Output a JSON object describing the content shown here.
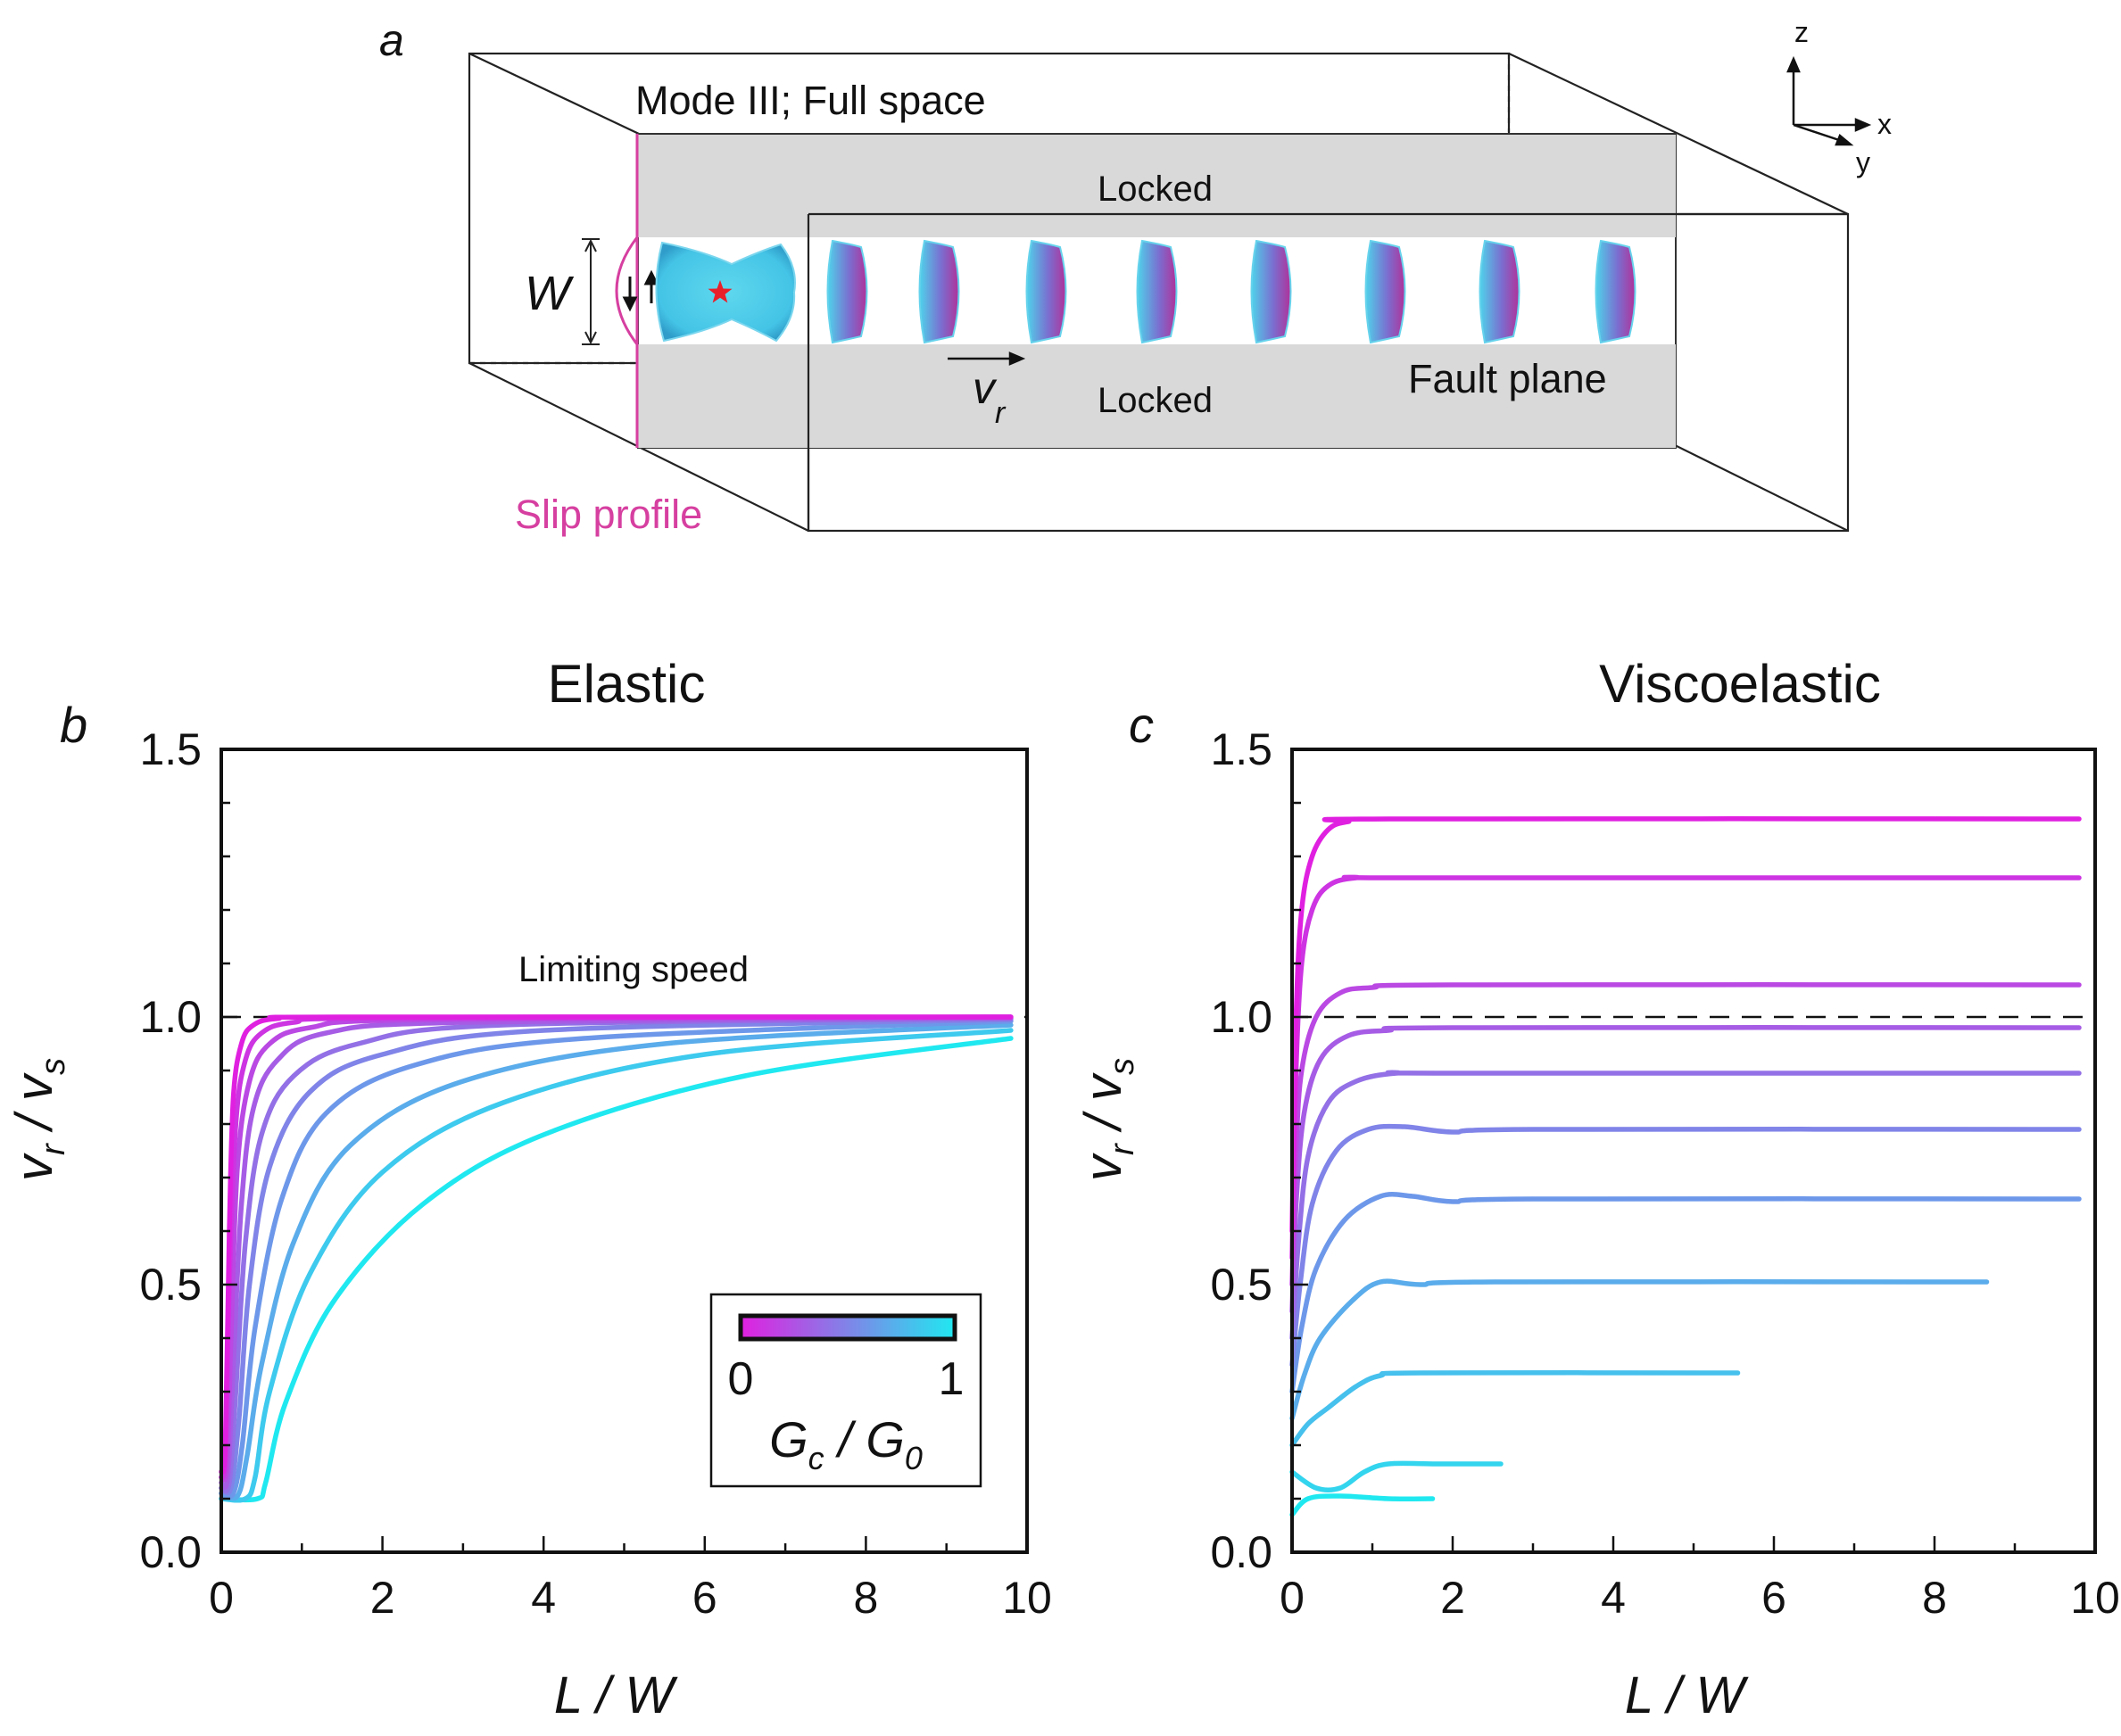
{
  "panel_a": {
    "label": "a",
    "title": "Mode III; Full space",
    "locked_top": "Locked",
    "locked_bottom": "Locked",
    "fault_plane": "Fault plane",
    "slip_profile": "Slip profile",
    "width_label": "W",
    "vr_symbol": "v",
    "vr_sub": "r",
    "axis_z": "z",
    "axis_x": "x",
    "axis_y": "y",
    "colors": {
      "slip": "#d63fa0",
      "locked": "#d9d9d9",
      "rupture_outer": "#4fd2ea",
      "rupture_inner": "#b0329a",
      "star": "#e8202a"
    }
  },
  "panel_b": {
    "label": "b",
    "title": "Elastic",
    "annotation": "Limiting speed"
  },
  "panel_c": {
    "label": "c",
    "title": "Viscoelastic"
  },
  "axes": {
    "xlabel_parts": [
      "L",
      " / ",
      "W"
    ],
    "ylabel_parts": {
      "v1": "v",
      "sub1": "r",
      "slash": " / ",
      "v2": "v",
      "sub2": "s"
    }
  },
  "colorbar": {
    "min_label": "0",
    "max_label": "1",
    "label_parts": {
      "g1": "G",
      "sub1": "c",
      "slash": " / ",
      "g2": "G",
      "sub2": "0"
    },
    "color_min": "#e020e0",
    "color_max": "#20e8f0"
  },
  "chart_data": [
    {
      "type": "line",
      "title": "Elastic",
      "xlabel": "L / W",
      "ylabel": "v_r / v_s",
      "xlim": [
        0,
        10
      ],
      "ylim": [
        0,
        1.5
      ],
      "xticks": [
        "0",
        "2",
        "4",
        "6",
        "8",
        "10"
      ],
      "yticks": [
        "0.0",
        "0.5",
        "1.0",
        "1.5"
      ],
      "reference_line": {
        "y": 1.0,
        "style": "dashed",
        "label": "Limiting speed"
      },
      "colormap": {
        "variable": "G_c / G_0",
        "range": [
          0,
          1
        ],
        "from": "#e020e0",
        "to": "#20e8f0"
      },
      "series": [
        {
          "gc_over_g0": 0.0,
          "points": [
            [
              0.0,
              0.15
            ],
            [
              0.05,
              0.2
            ],
            [
              0.1,
              0.6
            ],
            [
              0.15,
              0.85
            ],
            [
              0.25,
              0.95
            ],
            [
              0.4,
              0.985
            ],
            [
              0.7,
              0.997
            ],
            [
              1.5,
              1.0
            ],
            [
              9.8,
              1.0
            ]
          ]
        },
        {
          "gc_over_g0": 0.1,
          "points": [
            [
              0.0,
              0.14
            ],
            [
              0.05,
              0.18
            ],
            [
              0.1,
              0.5
            ],
            [
              0.18,
              0.8
            ],
            [
              0.3,
              0.92
            ],
            [
              0.5,
              0.97
            ],
            [
              0.9,
              0.99
            ],
            [
              2.0,
              0.998
            ],
            [
              9.8,
              1.0
            ]
          ]
        },
        {
          "gc_over_g0": 0.2,
          "points": [
            [
              0.0,
              0.14
            ],
            [
              0.07,
              0.16
            ],
            [
              0.12,
              0.4
            ],
            [
              0.2,
              0.72
            ],
            [
              0.35,
              0.88
            ],
            [
              0.6,
              0.95
            ],
            [
              1.1,
              0.98
            ],
            [
              2.5,
              0.995
            ],
            [
              9.8,
              1.0
            ]
          ]
        },
        {
          "gc_over_g0": 0.3,
          "points": [
            [
              0.0,
              0.13
            ],
            [
              0.08,
              0.14
            ],
            [
              0.15,
              0.35
            ],
            [
              0.25,
              0.65
            ],
            [
              0.4,
              0.83
            ],
            [
              0.7,
              0.92
            ],
            [
              1.3,
              0.97
            ],
            [
              3.0,
              0.99
            ],
            [
              9.8,
              0.998
            ]
          ]
        },
        {
          "gc_over_g0": 0.4,
          "points": [
            [
              0.0,
              0.12
            ],
            [
              0.1,
              0.13
            ],
            [
              0.18,
              0.3
            ],
            [
              0.3,
              0.58
            ],
            [
              0.5,
              0.78
            ],
            [
              0.9,
              0.89
            ],
            [
              1.7,
              0.95
            ],
            [
              3.5,
              0.985
            ],
            [
              9.8,
              0.997
            ]
          ]
        },
        {
          "gc_over_g0": 0.5,
          "points": [
            [
              0.0,
              0.12
            ],
            [
              0.12,
              0.12
            ],
            [
              0.22,
              0.25
            ],
            [
              0.35,
              0.5
            ],
            [
              0.6,
              0.72
            ],
            [
              1.1,
              0.86
            ],
            [
              2.0,
              0.93
            ],
            [
              4.0,
              0.975
            ],
            [
              9.8,
              0.995
            ]
          ]
        },
        {
          "gc_over_g0": 0.6,
          "points": [
            [
              0.0,
              0.11
            ],
            [
              0.15,
              0.11
            ],
            [
              0.26,
              0.2
            ],
            [
              0.42,
              0.42
            ],
            [
              0.75,
              0.66
            ],
            [
              1.3,
              0.82
            ],
            [
              2.4,
              0.91
            ],
            [
              4.5,
              0.96
            ],
            [
              9.8,
              0.992
            ]
          ]
        },
        {
          "gc_over_g0": 0.7,
          "points": [
            [
              0.0,
              0.11
            ],
            [
              0.2,
              0.105
            ],
            [
              0.32,
              0.18
            ],
            [
              0.5,
              0.35
            ],
            [
              0.9,
              0.58
            ],
            [
              1.6,
              0.76
            ],
            [
              3.0,
              0.88
            ],
            [
              5.5,
              0.95
            ],
            [
              9.8,
              0.985
            ]
          ]
        },
        {
          "gc_over_g0": 0.85,
          "points": [
            [
              0.0,
              0.1
            ],
            [
              0.3,
              0.1
            ],
            [
              0.42,
              0.14
            ],
            [
              0.6,
              0.3
            ],
            [
              1.1,
              0.52
            ],
            [
              2.0,
              0.71
            ],
            [
              3.5,
              0.84
            ],
            [
              6.0,
              0.93
            ],
            [
              9.8,
              0.975
            ]
          ]
        },
        {
          "gc_over_g0": 1.0,
          "points": [
            [
              0.0,
              0.1
            ],
            [
              0.45,
              0.1
            ],
            [
              0.55,
              0.13
            ],
            [
              0.8,
              0.28
            ],
            [
              1.4,
              0.47
            ],
            [
              2.5,
              0.65
            ],
            [
              4.0,
              0.78
            ],
            [
              6.5,
              0.89
            ],
            [
              9.8,
              0.96
            ]
          ]
        }
      ]
    },
    {
      "type": "line",
      "title": "Viscoelastic",
      "xlabel": "L / W",
      "ylabel": "v_r / v_s",
      "xlim": [
        0,
        10
      ],
      "ylim": [
        0,
        1.5
      ],
      "xticks": [
        "0",
        "2",
        "4",
        "6",
        "8",
        "10"
      ],
      "yticks": [
        "0.0",
        "0.5",
        "1.0",
        "1.5"
      ],
      "reference_line": {
        "y": 1.0,
        "style": "dashed"
      },
      "colormap": {
        "variable": "G_c / G_0",
        "range": [
          0,
          1
        ],
        "from": "#e020e0",
        "to": "#20e8f0"
      },
      "series": [
        {
          "gc_over_g0": 0.0,
          "points": [
            [
              0.0,
              0.6
            ],
            [
              0.05,
              1.0
            ],
            [
              0.12,
              1.2
            ],
            [
              0.25,
              1.3
            ],
            [
              0.45,
              1.35
            ],
            [
              0.7,
              1.365
            ],
            [
              1.2,
              1.37
            ],
            [
              9.8,
              1.37
            ]
          ]
        },
        {
          "gc_over_g0": 0.1,
          "points": [
            [
              0.0,
              0.55
            ],
            [
              0.05,
              0.9
            ],
            [
              0.12,
              1.1
            ],
            [
              0.25,
              1.2
            ],
            [
              0.45,
              1.245
            ],
            [
              0.8,
              1.26
            ],
            [
              1.5,
              1.26
            ],
            [
              9.8,
              1.26
            ]
          ]
        },
        {
          "gc_over_g0": 0.2,
          "points": [
            [
              0.0,
              0.5
            ],
            [
              0.05,
              0.75
            ],
            [
              0.12,
              0.9
            ],
            [
              0.3,
              1.0
            ],
            [
              0.6,
              1.045
            ],
            [
              1.0,
              1.055
            ],
            [
              2.0,
              1.06
            ],
            [
              9.8,
              1.06
            ]
          ]
        },
        {
          "gc_over_g0": 0.3,
          "points": [
            [
              0.0,
              0.45
            ],
            [
              0.05,
              0.65
            ],
            [
              0.15,
              0.82
            ],
            [
              0.35,
              0.92
            ],
            [
              0.7,
              0.965
            ],
            [
              1.2,
              0.975
            ],
            [
              2.0,
              0.98
            ],
            [
              9.8,
              0.98
            ]
          ]
        },
        {
          "gc_over_g0": 0.4,
          "points": [
            [
              0.0,
              0.4
            ],
            [
              0.08,
              0.58
            ],
            [
              0.2,
              0.74
            ],
            [
              0.45,
              0.84
            ],
            [
              0.8,
              0.88
            ],
            [
              1.3,
              0.895
            ],
            [
              2.0,
              0.895
            ],
            [
              9.8,
              0.895
            ]
          ]
        },
        {
          "gc_over_g0": 0.5,
          "points": [
            [
              0.0,
              0.35
            ],
            [
              0.1,
              0.5
            ],
            [
              0.25,
              0.65
            ],
            [
              0.55,
              0.75
            ],
            [
              0.95,
              0.79
            ],
            [
              1.4,
              0.795
            ],
            [
              2.0,
              0.785
            ],
            [
              3.0,
              0.79
            ],
            [
              9.8,
              0.79
            ]
          ]
        },
        {
          "gc_over_g0": 0.6,
          "points": [
            [
              0.0,
              0.3
            ],
            [
              0.12,
              0.42
            ],
            [
              0.3,
              0.53
            ],
            [
              0.65,
              0.62
            ],
            [
              1.1,
              0.665
            ],
            [
              1.5,
              0.665
            ],
            [
              2.0,
              0.655
            ],
            [
              3.0,
              0.66
            ],
            [
              9.8,
              0.66
            ]
          ]
        },
        {
          "gc_over_g0": 0.7,
          "points": [
            [
              0.0,
              0.25
            ],
            [
              0.15,
              0.33
            ],
            [
              0.35,
              0.4
            ],
            [
              0.75,
              0.47
            ],
            [
              1.1,
              0.505
            ],
            [
              1.6,
              0.5
            ],
            [
              2.5,
              0.505
            ],
            [
              8.65,
              0.505
            ]
          ]
        },
        {
          "gc_over_g0": 0.8,
          "points": [
            [
              0.0,
              0.2
            ],
            [
              0.2,
              0.24
            ],
            [
              0.45,
              0.27
            ],
            [
              0.8,
              0.31
            ],
            [
              1.1,
              0.33
            ],
            [
              1.6,
              0.335
            ],
            [
              5.55,
              0.335
            ]
          ]
        },
        {
          "gc_over_g0": 0.9,
          "points": [
            [
              0.0,
              0.15
            ],
            [
              0.3,
              0.12
            ],
            [
              0.6,
              0.12
            ],
            [
              0.9,
              0.15
            ],
            [
              1.2,
              0.165
            ],
            [
              1.8,
              0.165
            ],
            [
              2.6,
              0.165
            ]
          ]
        },
        {
          "gc_over_g0": 1.0,
          "points": [
            [
              0.0,
              0.07
            ],
            [
              0.2,
              0.1
            ],
            [
              0.6,
              0.105
            ],
            [
              1.2,
              0.1
            ],
            [
              1.75,
              0.1
            ]
          ]
        }
      ]
    }
  ]
}
